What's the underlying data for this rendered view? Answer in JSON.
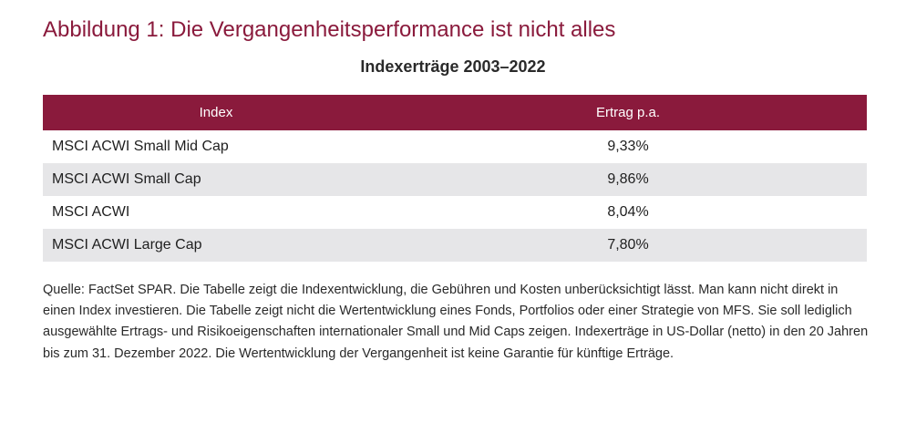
{
  "figure_title": "Abbildung 1: Die Vergangenheitsperformance ist nicht alles",
  "table_title": "Indexerträge 2003–2022",
  "table": {
    "columns": [
      "Index",
      "Ertrag p.a."
    ],
    "rows": [
      {
        "index": "MSCI ACWI Small Mid Cap",
        "return": "9,33%"
      },
      {
        "index": "MSCI ACWI Small Cap",
        "return": "9,86%"
      },
      {
        "index": "MSCI ACWI",
        "return": "8,04%"
      },
      {
        "index": "MSCI ACWI Large Cap",
        "return": "7,80%"
      }
    ]
  },
  "source_note": "Quelle: FactSet SPAR. Die Tabelle zeigt die Indexentwicklung, die Gebühren und Kosten unberücksichtigt lässt. Man kann nicht direkt in einen Index investieren. Die Tabelle zeigt nicht die Wertentwicklung eines Fonds, Portfolios oder einer Strategie von MFS. Sie soll lediglich ausgewählte Ertrags- und Risikoeigenschaften internationaler Small und Mid Caps zeigen. Indexerträge in US-Dollar (netto) in den 20 Jahren bis zum 31. Dezember 2022. Die Wertentwicklung der Vergangenheit ist keine Garantie für künftige Erträge.",
  "colors": {
    "accent": "#8a1a3c",
    "row_shade": "#e6e6e8"
  }
}
